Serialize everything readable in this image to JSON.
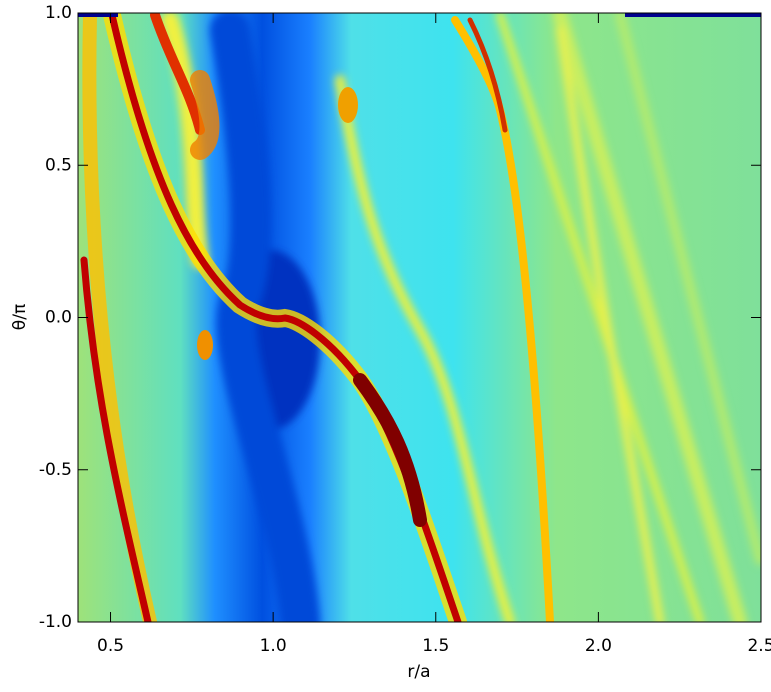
{
  "chart_data": {
    "type": "image",
    "xlabel": "r/a",
    "ylabel": "θ/π",
    "xlim": [
      0.4,
      2.5
    ],
    "ylim": [
      -1,
      1
    ],
    "xticks": [
      0.5,
      {
        "value": 1,
        "label": "1.0"
      },
      1.5,
      {
        "value": 2,
        "label": "2.0"
      },
      2.5
    ],
    "yticks": [
      {
        "value": -1,
        "label": "-1.0"
      },
      -0.5,
      {
        "value": 0,
        "label": "0.0"
      },
      0.5,
      {
        "value": 1,
        "label": "1.0"
      }
    ]
  }
}
